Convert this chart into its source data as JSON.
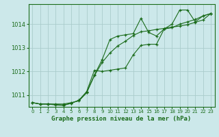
{
  "title": "Graphe pression niveau de la mer (hPa)",
  "bg_color": "#cce8ea",
  "grid_color": "#aacccc",
  "line_color": "#1a6b1a",
  "xlim": [
    -0.5,
    23.5
  ],
  "ylim": [
    1010.5,
    1014.85
  ],
  "yticks": [
    1011,
    1012,
    1013,
    1014
  ],
  "xticks": [
    0,
    1,
    2,
    3,
    4,
    5,
    6,
    7,
    8,
    9,
    10,
    11,
    12,
    13,
    14,
    15,
    16,
    17,
    18,
    19,
    20,
    21,
    22,
    23
  ],
  "series": [
    [
      1010.68,
      1010.62,
      1010.62,
      1010.62,
      1010.62,
      1010.68,
      1010.75,
      1011.1,
      1011.85,
      1012.5,
      1013.35,
      1013.5,
      1013.55,
      1013.6,
      1014.25,
      1013.65,
      1013.5,
      1013.8,
      1014.0,
      1014.6,
      1014.6,
      1014.1,
      1014.35,
      1014.45
    ],
    [
      1010.68,
      1010.62,
      1010.62,
      1010.6,
      1010.58,
      1010.65,
      1010.78,
      1011.15,
      1012.05,
      1012.0,
      1012.05,
      1012.1,
      1012.15,
      1012.7,
      1013.1,
      1013.15,
      1013.15,
      1013.8,
      1013.85,
      1014.0,
      1014.1,
      1014.2,
      1014.35,
      1014.45
    ],
    [
      1010.68,
      1010.62,
      1010.62,
      1010.58,
      1010.56,
      1010.65,
      1010.78,
      1011.1,
      1011.82,
      1012.38,
      1012.78,
      1013.08,
      1013.28,
      1013.52,
      1013.68,
      1013.72,
      1013.78,
      1013.82,
      1013.88,
      1013.92,
      1013.98,
      1014.08,
      1014.18,
      1014.45
    ]
  ]
}
